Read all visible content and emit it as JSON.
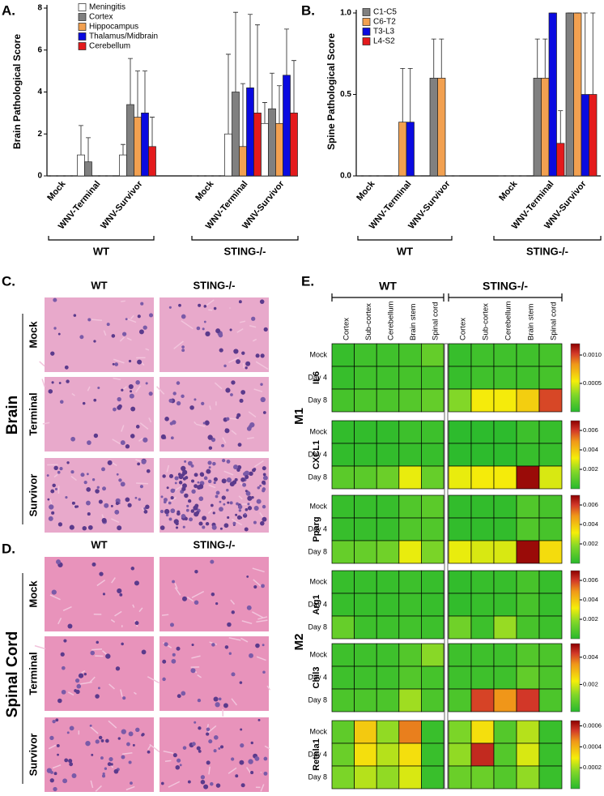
{
  "chart_data": [
    {
      "type": "bar",
      "label": "A.",
      "y_label": "Brain Pathological Score",
      "categories": [
        "Mock",
        "WNV-Terminal",
        "WNV-Survivor",
        "Mock",
        "WNV-Terminal",
        "WNV-Survivor"
      ],
      "groups": [
        {
          "name": "WT"
        },
        {
          "name": "STING-/-"
        }
      ],
      "series": [
        {
          "name": "Meningitis",
          "color": "#ffffff",
          "values": [
            0,
            1.0,
            1.0,
            0,
            2.0,
            2.5
          ],
          "errors": [
            0,
            1.4,
            0.5,
            0,
            3.8,
            1.0
          ]
        },
        {
          "name": "Cortex",
          "color": "#808080",
          "values": [
            0,
            0.67,
            3.4,
            0,
            4.0,
            3.2
          ],
          "errors": [
            0,
            1.15,
            2.2,
            0,
            3.8,
            1.7
          ]
        },
        {
          "name": "Hippocampus",
          "color": "#f2a050",
          "values": [
            0,
            0,
            2.8,
            0,
            1.4,
            2.5
          ],
          "errors": [
            0,
            0,
            2.2,
            0,
            3.0,
            1.8
          ]
        },
        {
          "name": "Thalamus/Midbrain",
          "color": "#0a0ae0",
          "values": [
            0,
            0,
            3.0,
            0,
            4.2,
            4.8
          ],
          "errors": [
            0,
            0,
            2.0,
            0,
            3.5,
            2.2
          ]
        },
        {
          "name": "Cerebellum",
          "color": "#e41a1c",
          "values": [
            0,
            0,
            1.4,
            0,
            3.0,
            3.0
          ],
          "errors": [
            0,
            0,
            1.4,
            0,
            4.2,
            2.5
          ]
        }
      ],
      "ylim": [
        0,
        8
      ],
      "yticks": [
        0,
        2,
        4,
        6,
        8
      ]
    },
    {
      "type": "bar",
      "label": "B.",
      "y_label": "Spine Pathological Score",
      "categories": [
        "Mock",
        "WNV-Terminal",
        "WNV-Survivor",
        "Mock",
        "WNV-Terminal",
        "WNV-Survivor"
      ],
      "groups": [
        {
          "name": "WT"
        },
        {
          "name": "STING-/-"
        }
      ],
      "series": [
        {
          "name": "C1-C5",
          "color": "#808080",
          "values": [
            0,
            0,
            0.6,
            0,
            0.6,
            1.0
          ],
          "errors": [
            0,
            0,
            0.24,
            0,
            0.24,
            0
          ]
        },
        {
          "name": "C6-T2",
          "color": "#f2a050",
          "values": [
            0,
            0.33,
            0.6,
            0,
            0.6,
            1.0
          ],
          "errors": [
            0,
            0.33,
            0.24,
            0,
            0.24,
            0
          ]
        },
        {
          "name": "T3-L3",
          "color": "#0a0ae0",
          "values": [
            0,
            0.33,
            0,
            0,
            1.0,
            0.5
          ],
          "errors": [
            0,
            0.33,
            0,
            0,
            0,
            0.5
          ]
        },
        {
          "name": "L4-S2",
          "color": "#e41a1c",
          "values": [
            0,
            0,
            0,
            0,
            0.2,
            0.5
          ],
          "errors": [
            0,
            0,
            0,
            0,
            0.2,
            0.5
          ]
        }
      ],
      "ylim": [
        0,
        1
      ],
      "yticks": [
        {
          "value": 0,
          "label": "0.0"
        },
        {
          "value": 0.5,
          "label": "0.5"
        },
        {
          "value": 1,
          "label": "1.0"
        }
      ]
    },
    {
      "type": "heatmap",
      "label": "E.",
      "groups": [
        "WT",
        "STING-/-"
      ],
      "columns": [
        "Cortex",
        "Sub-cortex",
        "Cerebellum",
        "Brain stem",
        "Spinal cord",
        "Cortex",
        "Sub-cortex",
        "Cerebellum",
        "Brain stem",
        "Spinal cord"
      ],
      "rows": [
        "Mock",
        "Day 4",
        "Day 8"
      ],
      "classes": [
        {
          "name": "M1",
          "genes": [
            {
              "name": "IL6",
              "clim": [
                0,
                0.0012
              ],
              "ticks": [
                0.0005,
                {
                  "value": 0.001,
                  "label": "0.0010"
                }
              ],
              "values": [
                [
                  5e-05,
                  8e-05,
                  8e-05,
                  0.0001,
                  0.0002,
                  5e-05,
                  8e-05,
                  8e-05,
                  8e-05,
                  0.0001
                ],
                [
                  5e-05,
                  8e-05,
                  8e-05,
                  0.0001,
                  0.0001,
                  5e-05,
                  8e-05,
                  8e-05,
                  8e-05,
                  0.0001
                ],
                [
                  0.0001,
                  0.00012,
                  0.00012,
                  0.00015,
                  0.0002,
                  0.0003,
                  0.00055,
                  0.00055,
                  0.00065,
                  0.001
                ]
              ]
            },
            {
              "name": "CXCL1",
              "clim": [
                0,
                0.007
              ],
              "ticks": [
                0.002,
                0.004,
                0.006
              ],
              "values": [
                [
                  0.0002,
                  0.0002,
                  0.0002,
                  0.0004,
                  0.0004,
                  0.0001,
                  0.0001,
                  0.0001,
                  0.0004,
                  0.0003
                ],
                [
                  0.0002,
                  0.0002,
                  0.0002,
                  0.0003,
                  0.0003,
                  0.0001,
                  0.0001,
                  0.0001,
                  0.0003,
                  0.0003
                ],
                [
                  0.001,
                  0.001,
                  0.0013,
                  0.003,
                  0.0012,
                  0.003,
                  0.0032,
                  0.0032,
                  0.0068,
                  0.0028
                ]
              ]
            }
          ]
        },
        {
          "name": "M2",
          "genes": [
            {
              "name": "Pparg",
              "clim": [
                0,
                0.007
              ],
              "ticks": [
                0.002,
                0.004,
                0.006
              ],
              "values": [
                [
                  0.0003,
                  0.0003,
                  0.0003,
                  0.0008,
                  0.001,
                  0.0002,
                  0.0002,
                  0.0002,
                  0.0008,
                  0.0006
                ],
                [
                  0.0003,
                  0.0003,
                  0.0003,
                  0.0008,
                  0.0008,
                  0.0002,
                  0.0002,
                  0.0002,
                  0.0008,
                  0.0006
                ],
                [
                  0.0012,
                  0.0012,
                  0.0014,
                  0.003,
                  0.0016,
                  0.003,
                  0.0028,
                  0.0028,
                  0.0068,
                  0.0035
                ]
              ]
            },
            {
              "name": "Arg1",
              "clim": [
                0,
                0.007
              ],
              "ticks": [
                0.002,
                0.004,
                0.006
              ],
              "values": [
                [
                  0.0003,
                  0.0003,
                  0.0003,
                  0.0004,
                  0.0003,
                  0.0002,
                  0.0003,
                  0.0003,
                  0.0006,
                  0.0003
                ],
                [
                  0.0003,
                  0.0003,
                  0.0003,
                  0.0004,
                  0.0003,
                  0.0002,
                  0.0003,
                  0.0003,
                  0.0006,
                  0.0003
                ],
                [
                  0.0012,
                  0.0004,
                  0.0004,
                  0.0005,
                  0.0004,
                  0.0014,
                  0.0004,
                  0.002,
                  0.0006,
                  0.0004
                ]
              ]
            },
            {
              "name": "Chil3",
              "clim": [
                0,
                0.005
              ],
              "ticks": [
                0.002,
                0.004
              ],
              "values": [
                [
                  0.0003,
                  0.0003,
                  0.0003,
                  0.0006,
                  0.0013,
                  0.0003,
                  0.0003,
                  0.0003,
                  0.0006,
                  0.0005
                ],
                [
                  0.0003,
                  0.0003,
                  0.0003,
                  0.0006,
                  0.0004,
                  0.0003,
                  0.0003,
                  0.0003,
                  0.0008,
                  0.0005
                ],
                [
                  0.0005,
                  0.0005,
                  0.0005,
                  0.0015,
                  0.0005,
                  0.0005,
                  0.0042,
                  0.0035,
                  0.0043,
                  0.0005
                ]
              ]
            },
            {
              "name": "Retnla1",
              "clim": [
                0,
                0.00065
              ],
              "ticks": [
                0.0002,
                0.0004,
                0.0006
              ],
              "values": [
                [
                  0.0001,
                  0.00036,
                  0.00018,
                  0.00048,
                  3e-05,
                  0.00015,
                  0.00032,
                  8e-05,
                  0.00022,
                  3e-05
                ],
                [
                  0.00012,
                  0.00032,
                  0.00022,
                  0.00032,
                  3e-05,
                  0.00018,
                  0.00058,
                  8e-05,
                  0.00026,
                  3e-05
                ],
                [
                  0.00015,
                  0.00022,
                  0.00018,
                  0.00026,
                  3e-05,
                  0.00012,
                  0.00012,
                  8e-05,
                  0.00018,
                  3e-05
                ]
              ]
            }
          ]
        }
      ]
    }
  ],
  "histology": {
    "brain": {
      "label": "C.",
      "tissue": "Brain",
      "columns": [
        "WT",
        "STING-/-"
      ],
      "rows": [
        "Mock",
        "Terminal",
        "Survivor"
      ]
    },
    "spinal_cord": {
      "label": "D.",
      "tissue": "Spinal Cord",
      "columns": [
        "WT",
        "STING-/-"
      ],
      "rows": [
        "Mock",
        "Terminal",
        "Survivor"
      ]
    }
  }
}
